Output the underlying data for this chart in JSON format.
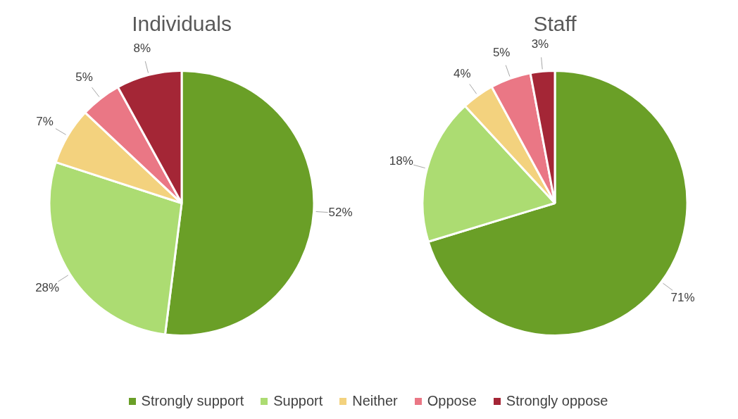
{
  "chart_data": [
    {
      "type": "pie",
      "title": "Individuals",
      "categories": [
        "Strongly support",
        "Support",
        "Neither",
        "Oppose",
        "Strongly oppose"
      ],
      "values": [
        52,
        28,
        7,
        5,
        8
      ],
      "value_labels": [
        "52%",
        "28%",
        "7%",
        "5%",
        "8%"
      ],
      "colors": [
        "#6a9f27",
        "#acdc72",
        "#f3d27e",
        "#ea7785",
        "#a42636"
      ],
      "legend": "bottom"
    },
    {
      "type": "pie",
      "title": "Staff",
      "categories": [
        null,
        null,
        null,
        null,
        null
      ],
      "values": [
        71,
        18,
        4,
        5,
        3
      ],
      "value_labels": [
        "71%",
        "18%",
        "4%",
        "5%",
        "3%"
      ],
      "colors": [
        "#6a9f27",
        "#acdc72",
        "#f3d27e",
        "#ea7785",
        "#a42636"
      ]
    }
  ]
}
